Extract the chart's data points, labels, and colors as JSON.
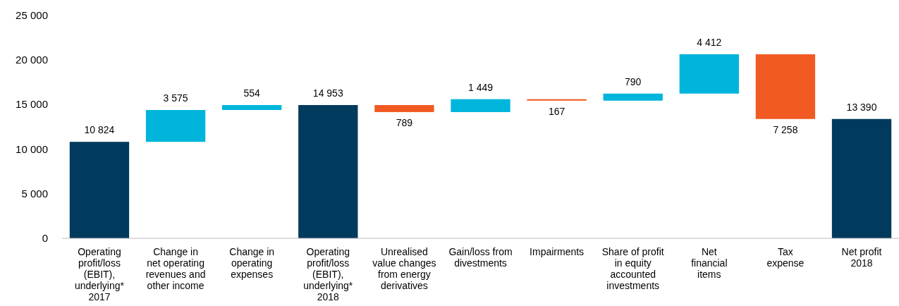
{
  "chart_data": {
    "type": "bar",
    "categories": [
      "Operating\nprofit/loss\n(EBIT),\nunderlying*\n2017",
      "Change in\nnet operating\nrevenues and\nother income",
      "Change in\noperating\nexpenses",
      "Operating\nprofit/loss\n(EBIT),\nunderlying*\n2018",
      "Unrealised\nvalue changes\nfrom energy\nderivatives",
      "Gain/loss from\ndivestments",
      "Impairments",
      "Share of profit\nin equity\naccounted\ninvestments",
      "Net\nfinancial\nitems",
      "Tax\nexpense",
      "Net profit\n2018"
    ],
    "values": [
      10824,
      3575,
      554,
      14953,
      -789,
      1449,
      -167,
      790,
      4412,
      -7258,
      13390
    ],
    "base": [
      0,
      10824,
      14399,
      0,
      14953,
      14164,
      15613,
      15446,
      16236,
      20648,
      0
    ],
    "colors": [
      "#003a5d",
      "#00b5dc",
      "#00b5dc",
      "#003a5d",
      "#f15a22",
      "#00b5dc",
      "#f15a22",
      "#00b5dc",
      "#00b5dc",
      "#f15a22",
      "#003a5d"
    ],
    "value_labels": [
      "10 824",
      "3 575",
      "554",
      "14 953",
      "789",
      "1 449",
      "167",
      "790",
      "4 412",
      "7 258",
      "13 390"
    ],
    "ylim": [
      0,
      25000
    ],
    "yticks": [
      {
        "value": 0,
        "label": "0"
      },
      {
        "value": 5000,
        "label": "5 000"
      },
      {
        "value": 10000,
        "label": "10 000"
      },
      {
        "value": 15000,
        "label": "15 000"
      },
      {
        "value": 20000,
        "label": "20 000"
      },
      {
        "value": 25000,
        "label": "25 000"
      }
    ],
    "grid": false
  }
}
